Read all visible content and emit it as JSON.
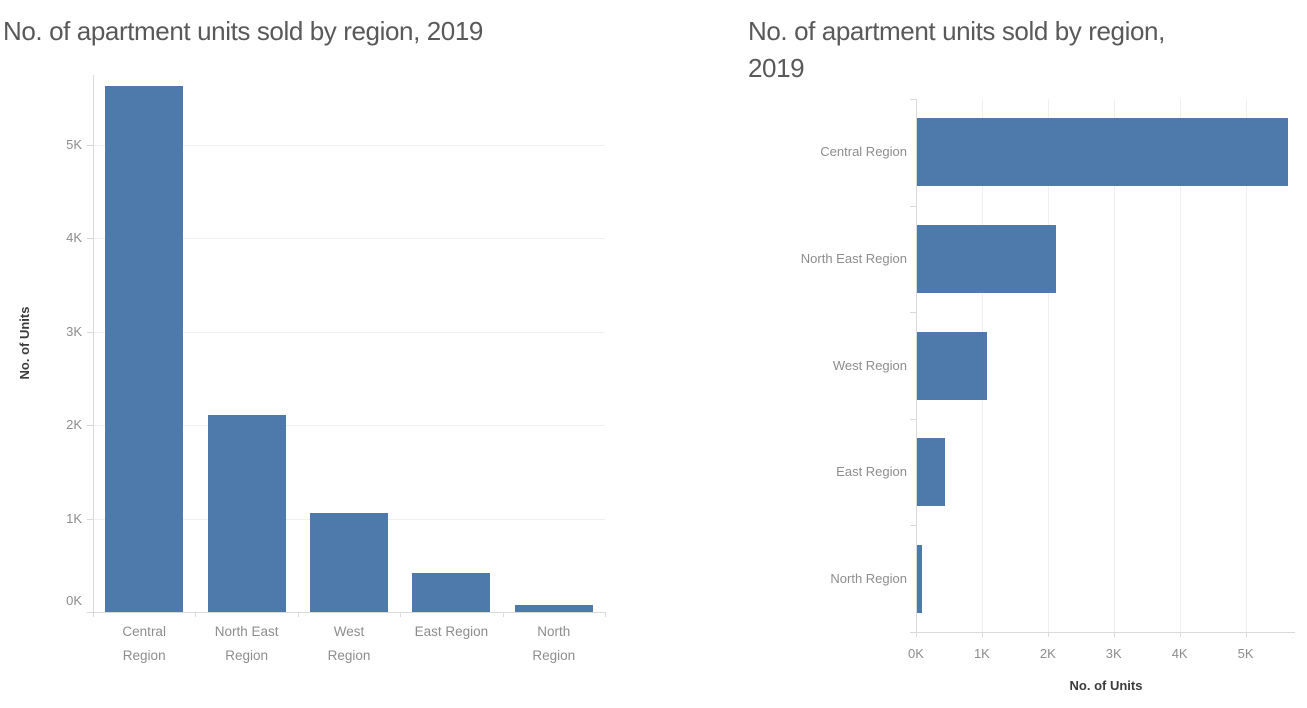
{
  "page": {
    "background_color": "#ffffff"
  },
  "colors": {
    "bar": "#4e7aab",
    "title": "#595959",
    "tick_label": "#8d8d8d",
    "axis_title": "#3c3c3c",
    "gridline": "#efefef",
    "domain_line": "#d9d9d9"
  },
  "left_chart": {
    "title": "No. of apartment units sold by region, 2019",
    "y_axis_title": "No. of Units"
  },
  "right_chart": {
    "title_line1": "No. of apartment units sold by region,",
    "title_line2": "2019",
    "x_axis_title": "No. of Units"
  },
  "chart_data": [
    {
      "type": "bar",
      "orientation": "vertical",
      "title": "No. of apartment units sold by region, 2019",
      "categories": [
        "Central Region",
        "North East Region",
        "West Region",
        "East Region",
        "North Region"
      ],
      "category_lines": [
        [
          "Central",
          "Region"
        ],
        [
          "North East",
          "Region"
        ],
        [
          "West",
          "Region"
        ],
        [
          "East Region"
        ],
        [
          "North",
          "Region"
        ]
      ],
      "values": [
        5630,
        2110,
        1060,
        420,
        70
      ],
      "xlabel": "",
      "ylabel": "No. of Units",
      "ylim": [
        0,
        5750
      ],
      "yticks": [
        0,
        1000,
        2000,
        3000,
        4000,
        5000
      ],
      "ytick_labels": [
        "0K",
        "1K",
        "2K",
        "3K",
        "4K",
        "5K"
      ],
      "grid": true,
      "legend": false,
      "bar_color": "#4e7aab"
    },
    {
      "type": "bar",
      "orientation": "horizontal",
      "title": "No. of apartment units sold by region, 2019",
      "categories": [
        "Central Region",
        "North East Region",
        "West Region",
        "East Region",
        "North Region"
      ],
      "values": [
        5630,
        2110,
        1060,
        420,
        70
      ],
      "xlabel": "No. of Units",
      "ylabel": "",
      "xlim": [
        0,
        5750
      ],
      "xticks": [
        0,
        1000,
        2000,
        3000,
        4000,
        5000
      ],
      "xtick_labels": [
        "0K",
        "1K",
        "2K",
        "3K",
        "4K",
        "5K"
      ],
      "grid": true,
      "legend": false,
      "bar_color": "#4e7aab"
    }
  ]
}
